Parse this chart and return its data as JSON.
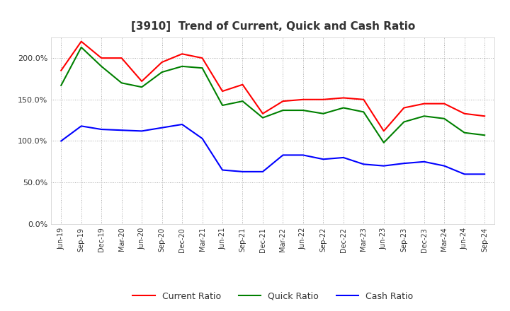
{
  "title": "[3910]  Trend of Current, Quick and Cash Ratio",
  "labels": [
    "Jun-19",
    "Sep-19",
    "Dec-19",
    "Mar-20",
    "Jun-20",
    "Sep-20",
    "Dec-20",
    "Mar-21",
    "Jun-21",
    "Sep-21",
    "Dec-21",
    "Mar-22",
    "Jun-22",
    "Sep-22",
    "Dec-22",
    "Mar-23",
    "Jun-23",
    "Sep-23",
    "Dec-23",
    "Mar-24",
    "Jun-24",
    "Sep-24"
  ],
  "current_ratio": [
    185,
    220,
    200,
    200,
    172,
    195,
    205,
    200,
    160,
    168,
    133,
    148,
    150,
    150,
    152,
    150,
    112,
    140,
    145,
    145,
    133,
    130
  ],
  "quick_ratio": [
    167,
    213,
    190,
    170,
    165,
    183,
    190,
    188,
    143,
    148,
    128,
    137,
    137,
    133,
    140,
    135,
    98,
    123,
    130,
    127,
    110,
    107
  ],
  "cash_ratio": [
    100,
    118,
    114,
    113,
    112,
    116,
    120,
    103,
    65,
    63,
    63,
    83,
    83,
    78,
    80,
    72,
    70,
    73,
    75,
    70,
    60,
    60
  ],
  "ylim": [
    0,
    225
  ],
  "yticks": [
    0,
    50,
    100,
    150,
    200
  ],
  "current_color": "#ff0000",
  "quick_color": "#008000",
  "cash_color": "#0000ff",
  "bg_color": "#ffffff",
  "plot_bg_color": "#ffffff",
  "grid_color": "#aaaaaa",
  "title_fontsize": 11,
  "title_color": "#333333",
  "legend_labels": [
    "Current Ratio",
    "Quick Ratio",
    "Cash Ratio"
  ]
}
